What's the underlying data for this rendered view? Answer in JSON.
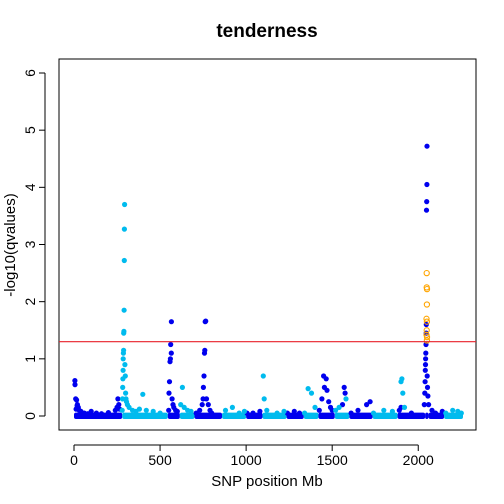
{
  "chart_data": {
    "type": "scatter",
    "title": "tenderness",
    "xlabel": "SNP position Mb",
    "ylabel": "-log10(qvalues)",
    "xlim": [
      0,
      2260
    ],
    "ylim": [
      0,
      6
    ],
    "x_ticks": [
      0,
      500,
      1000,
      1500,
      2000
    ],
    "y_ticks": [
      0,
      1,
      2,
      3,
      4,
      5,
      6
    ],
    "threshold": {
      "y": 1.3,
      "color": "#e8202a"
    },
    "colors": {
      "dark": "#0000ee",
      "light": "#00bbee",
      "highlight": "#ffa500"
    },
    "chromosome_bands": [
      [
        0,
        280,
        "dark"
      ],
      [
        280,
        545,
        "light"
      ],
      [
        545,
        615,
        "dark"
      ],
      [
        615,
        700,
        "light"
      ],
      [
        700,
        860,
        "dark"
      ],
      [
        860,
        1000,
        "light"
      ],
      [
        1000,
        1095,
        "dark"
      ],
      [
        1095,
        1235,
        "light"
      ],
      [
        1235,
        1335,
        "dark"
      ],
      [
        1335,
        1420,
        "light"
      ],
      [
        1420,
        1515,
        "dark"
      ],
      [
        1515,
        1600,
        "light"
      ],
      [
        1600,
        1735,
        "dark"
      ],
      [
        1735,
        1880,
        "light"
      ],
      [
        1880,
        2040,
        "dark"
      ],
      [
        2040,
        2060,
        "dark"
      ],
      [
        2060,
        2150,
        "dark"
      ],
      [
        2150,
        2260,
        "light"
      ]
    ],
    "series": [
      {
        "color_key": "dark",
        "points": [
          [
            5,
            0.62
          ],
          [
            6,
            0.55
          ],
          [
            10,
            0.3
          ],
          [
            15,
            0.28
          ],
          [
            20,
            0.2
          ],
          [
            25,
            0.15
          ],
          [
            30,
            0.1
          ],
          [
            18,
            0.18
          ],
          [
            12,
            0.12
          ],
          [
            40,
            0.08
          ],
          [
            60,
            0.05
          ],
          [
            80,
            0.04
          ],
          [
            100,
            0.08
          ],
          [
            130,
            0.05
          ],
          [
            160,
            0.04
          ],
          [
            200,
            0.06
          ],
          [
            240,
            0.1
          ],
          [
            250,
            0.15
          ],
          [
            255,
            0.3
          ],
          [
            260,
            0.2
          ],
          [
            265,
            0.12
          ],
          [
            550,
            0.1
          ],
          [
            552,
            0.4
          ],
          [
            555,
            0.6
          ],
          [
            558,
            0.95
          ],
          [
            560,
            1.0
          ],
          [
            562,
            1.25
          ],
          [
            565,
            1.1
          ],
          [
            566,
            1.65
          ],
          [
            570,
            0.3
          ],
          [
            575,
            0.2
          ],
          [
            580,
            0.15
          ],
          [
            590,
            0.1
          ],
          [
            600,
            0.08
          ],
          [
            710,
            0.05
          ],
          [
            730,
            0.1
          ],
          [
            745,
            0.2
          ],
          [
            750,
            0.3
          ],
          [
            752,
            0.5
          ],
          [
            755,
            0.7
          ],
          [
            758,
            1.1
          ],
          [
            760,
            1.15
          ],
          [
            762,
            1.65
          ],
          [
            765,
            1.66
          ],
          [
            770,
            0.3
          ],
          [
            780,
            0.2
          ],
          [
            790,
            0.1
          ],
          [
            800,
            0.05
          ],
          [
            1005,
            0.05
          ],
          [
            1040,
            0.05
          ],
          [
            1080,
            0.08
          ],
          [
            1240,
            0.05
          ],
          [
            1280,
            0.08
          ],
          [
            1310,
            0.05
          ],
          [
            1425,
            0.1
          ],
          [
            1440,
            0.3
          ],
          [
            1450,
            0.7
          ],
          [
            1455,
            0.5
          ],
          [
            1465,
            0.65
          ],
          [
            1470,
            0.45
          ],
          [
            1480,
            0.25
          ],
          [
            1490,
            0.15
          ],
          [
            1500,
            0.1
          ],
          [
            1560,
            0.2
          ],
          [
            1570,
            0.5
          ],
          [
            1575,
            0.4
          ],
          [
            1610,
            0.05
          ],
          [
            1650,
            0.1
          ],
          [
            1700,
            0.2
          ],
          [
            1720,
            0.25
          ],
          [
            1890,
            0.1
          ],
          [
            1900,
            0.15
          ],
          [
            1960,
            0.05
          ],
          [
            2035,
            0.2
          ],
          [
            2038,
            0.4
          ],
          [
            2040,
            0.6
          ],
          [
            2041,
            0.8
          ],
          [
            2042,
            0.9
          ],
          [
            2043,
            1.0
          ],
          [
            2044,
            1.1
          ],
          [
            2045,
            1.25
          ],
          [
            2046,
            1.45
          ],
          [
            2047,
            1.6
          ],
          [
            2048,
            3.6
          ],
          [
            2049,
            3.75
          ],
          [
            2050,
            4.05
          ],
          [
            2051,
            4.72
          ],
          [
            2052,
            0.7
          ],
          [
            2054,
            0.5
          ],
          [
            2056,
            0.35
          ],
          [
            2060,
            0.2
          ],
          [
            2080,
            0.1
          ],
          [
            2100,
            0.05
          ],
          [
            2140,
            0.08
          ]
        ]
      },
      {
        "color_key": "light",
        "points": [
          [
            280,
            0.1
          ],
          [
            282,
            0.3
          ],
          [
            283,
            0.5
          ],
          [
            284,
            0.65
          ],
          [
            285,
            0.8
          ],
          [
            286,
            1.0
          ],
          [
            287,
            1.1
          ],
          [
            288,
            1.15
          ],
          [
            289,
            1.45
          ],
          [
            290,
            1.48
          ],
          [
            291,
            1.85
          ],
          [
            292,
            2.72
          ],
          [
            293,
            3.27
          ],
          [
            294,
            3.7
          ],
          [
            296,
            0.9
          ],
          [
            298,
            0.7
          ],
          [
            300,
            0.4
          ],
          [
            302,
            0.3
          ],
          [
            305,
            0.25
          ],
          [
            310,
            0.2
          ],
          [
            320,
            0.15
          ],
          [
            340,
            0.1
          ],
          [
            360,
            0.08
          ],
          [
            380,
            0.12
          ],
          [
            400,
            0.38
          ],
          [
            420,
            0.1
          ],
          [
            460,
            0.08
          ],
          [
            500,
            0.05
          ],
          [
            620,
            0.2
          ],
          [
            630,
            0.5
          ],
          [
            640,
            0.15
          ],
          [
            660,
            0.1
          ],
          [
            680,
            0.08
          ],
          [
            880,
            0.1
          ],
          [
            920,
            0.15
          ],
          [
            960,
            0.05
          ],
          [
            990,
            0.08
          ],
          [
            1100,
            0.7
          ],
          [
            1105,
            0.3
          ],
          [
            1120,
            0.1
          ],
          [
            1180,
            0.05
          ],
          [
            1220,
            0.08
          ],
          [
            1340,
            0.05
          ],
          [
            1360,
            0.48
          ],
          [
            1380,
            0.4
          ],
          [
            1400,
            0.15
          ],
          [
            1520,
            0.1
          ],
          [
            1540,
            0.15
          ],
          [
            1580,
            0.3
          ],
          [
            1740,
            0.05
          ],
          [
            1800,
            0.1
          ],
          [
            1850,
            0.08
          ],
          [
            1900,
            0.6
          ],
          [
            1905,
            0.65
          ],
          [
            1910,
            0.4
          ],
          [
            1920,
            0.15
          ],
          [
            2160,
            0.05
          ],
          [
            2200,
            0.1
          ],
          [
            2230,
            0.08
          ],
          [
            2250,
            0.05
          ]
        ]
      },
      {
        "color_key": "highlight",
        "open": true,
        "points": [
          [
            2049,
            2.5
          ],
          [
            2049,
            2.25
          ],
          [
            2051,
            2.22
          ],
          [
            2050,
            1.95
          ],
          [
            2048,
            1.7
          ],
          [
            2050,
            1.65
          ],
          [
            2049,
            1.5
          ],
          [
            2048,
            1.42
          ],
          [
            2051,
            1.38
          ],
          [
            2050,
            1.32
          ]
        ]
      }
    ]
  }
}
